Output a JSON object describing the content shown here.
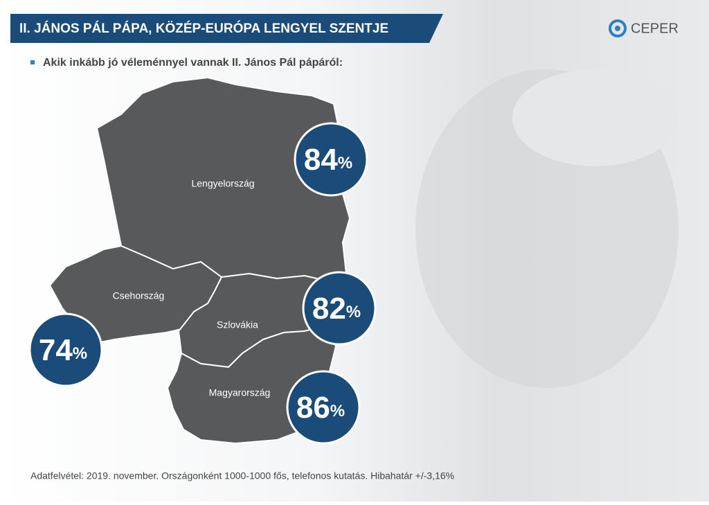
{
  "header": {
    "title": "II. JÁNOS PÁL PÁPA, KÖZÉP-EURÓPA LENGYEL SZENTJE",
    "logo": "CEPER"
  },
  "subtitle": "Akik inkább jó véleménnyel vannak II. János Pál pápáról:",
  "unit": "%",
  "countries": [
    {
      "name": "Lengyelország",
      "value": 84
    },
    {
      "name": "Csehország",
      "value": 74
    },
    {
      "name": "Szlovákia",
      "value": 82
    },
    {
      "name": "Magyarország",
      "value": 86
    }
  ],
  "footnote": "Adatfelvétel: 2019. november. Országonként 1000-1000 fős, telefonos kutatás. Hibahatár +/-3,16%"
}
